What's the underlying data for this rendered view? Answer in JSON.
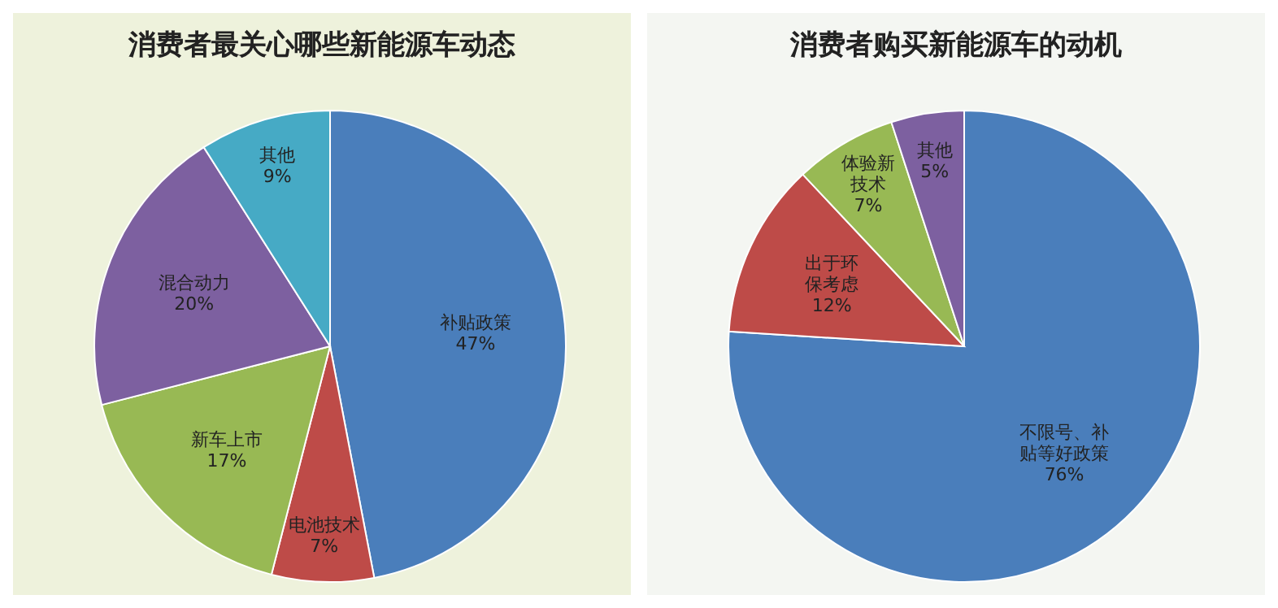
{
  "chart_data": [
    {
      "type": "pie",
      "title": "消费者最关心哪些新能源车动态",
      "categories": [
        "补贴政策",
        "电池技术",
        "新车上市",
        "混合动力",
        "其他"
      ],
      "values": [
        47,
        7,
        17,
        20,
        9
      ],
      "value_labels": [
        "47%",
        "7%",
        "17%",
        "20%",
        "9%"
      ],
      "colors": [
        "#4a7ebb",
        "#be4b48",
        "#98b954",
        "#7d60a0",
        "#46aac5"
      ],
      "legend": false
    },
    {
      "type": "pie",
      "title": "消费者购买新能源车的动机",
      "categories": [
        "不限号、补贴等好政策",
        "出于环保考虑",
        "体验新技术",
        "其他"
      ],
      "values": [
        76,
        12,
        7,
        5
      ],
      "value_labels": [
        "76%",
        "12%",
        "7%",
        "5%"
      ],
      "colors": [
        "#4a7ebb",
        "#be4b48",
        "#98b954",
        "#7d60a0"
      ],
      "legend": false
    }
  ]
}
